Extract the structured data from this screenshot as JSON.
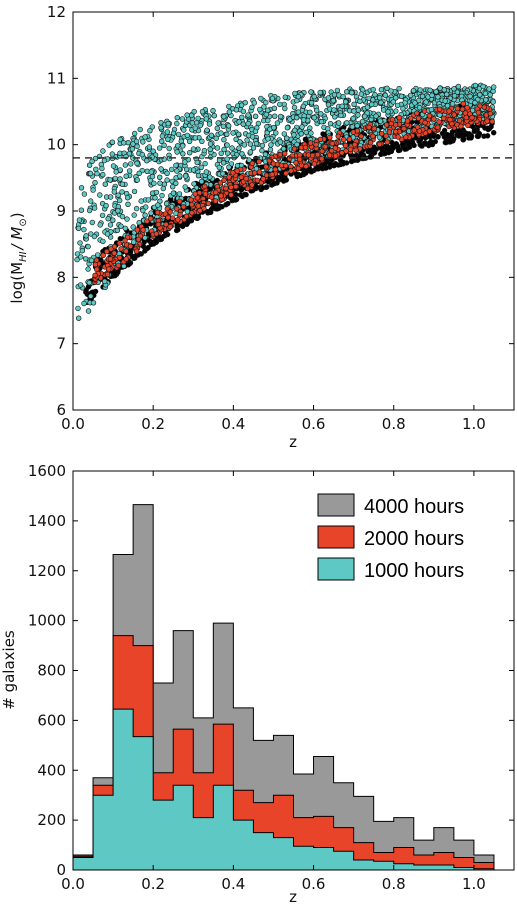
{
  "chart_data": [
    {
      "type": "scatter",
      "title": "",
      "xlabel": "z",
      "ylabel": "log(M_HI / M_⊙)",
      "ylabel_parts": {
        "prefix": "log(M",
        "sub": "HI",
        "mid": "/ M",
        "sub2": "⊙",
        "suffix": ")"
      },
      "xlim": [
        0.0,
        1.1
      ],
      "ylim": [
        6,
        12
      ],
      "x_ticks": [
        0.0,
        0.2,
        0.4,
        0.6,
        0.8,
        1.0
      ],
      "x_tick_labels": [
        "0.0",
        "0.2",
        "0.4",
        "0.6",
        "0.8",
        "1.0"
      ],
      "y_ticks": [
        6,
        7,
        8,
        9,
        10,
        11,
        12
      ],
      "y_tick_labels": [
        "6",
        "7",
        "8",
        "9",
        "10",
        "11",
        "12"
      ],
      "threshold_line": {
        "y": 9.8,
        "style": "dashed"
      },
      "series": [
        {
          "color": "#000000",
          "lower_envelope": [
            [
              0.03,
              7.6
            ],
            [
              0.05,
              7.7
            ],
            [
              0.1,
              8.0
            ],
            [
              0.2,
              8.5
            ],
            [
              0.3,
              8.85
            ],
            [
              0.4,
              9.15
            ],
            [
              0.5,
              9.4
            ],
            [
              0.6,
              9.6
            ],
            [
              0.7,
              9.75
            ],
            [
              0.8,
              9.9
            ],
            [
              0.9,
              10.0
            ],
            [
              1.0,
              10.1
            ],
            [
              1.05,
              10.15
            ]
          ],
          "points_shown": "dense"
        },
        {
          "color": "#e8442a",
          "lower_envelope": [
            [
              0.05,
              7.9
            ],
            [
              0.1,
              8.1
            ],
            [
              0.2,
              8.6
            ],
            [
              0.3,
              8.95
            ],
            [
              0.4,
              9.25
            ],
            [
              0.5,
              9.5
            ],
            [
              0.6,
              9.7
            ],
            [
              0.7,
              9.9
            ],
            [
              0.8,
              10.05
            ],
            [
              0.9,
              10.2
            ],
            [
              1.0,
              10.3
            ],
            [
              1.05,
              10.35
            ]
          ],
          "points_shown": "dense"
        },
        {
          "color": "#5ec8c4",
          "lower_envelope": [
            [
              0.01,
              7.2
            ],
            [
              0.05,
              7.6
            ],
            [
              0.1,
              8.0
            ],
            [
              0.2,
              8.6
            ],
            [
              0.3,
              9.0
            ],
            [
              0.4,
              9.3
            ],
            [
              0.5,
              9.55
            ],
            [
              0.6,
              9.75
            ],
            [
              0.7,
              9.95
            ],
            [
              0.8,
              10.1
            ],
            [
              0.9,
              10.25
            ],
            [
              1.0,
              10.35
            ],
            [
              1.05,
              10.4
            ]
          ],
          "upper_envelope": [
            [
              0.01,
              9.5
            ],
            [
              0.05,
              10.0
            ],
            [
              0.1,
              10.1
            ],
            [
              0.2,
              10.3
            ],
            [
              0.3,
              10.5
            ],
            [
              0.4,
              10.65
            ],
            [
              0.5,
              10.75
            ],
            [
              0.6,
              10.8
            ],
            [
              0.7,
              10.85
            ],
            [
              0.8,
              10.85
            ],
            [
              0.9,
              10.85
            ],
            [
              1.0,
              10.9
            ]
          ],
          "points_shown": "dense"
        }
      ]
    },
    {
      "type": "histogram",
      "title": "",
      "xlabel": "z",
      "ylabel": "# galaxies",
      "xlim": [
        0.0,
        1.1
      ],
      "ylim": [
        0,
        1600
      ],
      "x_ticks": [
        0.0,
        0.2,
        0.4,
        0.6,
        0.8,
        1.0
      ],
      "x_tick_labels": [
        "0.0",
        "0.2",
        "0.4",
        "0.6",
        "0.8",
        "1.0"
      ],
      "y_ticks": [
        0,
        200,
        400,
        600,
        800,
        1000,
        1200,
        1400,
        1600
      ],
      "y_tick_labels": [
        "0",
        "200",
        "400",
        "600",
        "800",
        "1000",
        "1200",
        "1400",
        "1600"
      ],
      "bin_edges": [
        0.0,
        0.05,
        0.1,
        0.15,
        0.2,
        0.25,
        0.3,
        0.35,
        0.4,
        0.45,
        0.5,
        0.55,
        0.6,
        0.65,
        0.7,
        0.75,
        0.8,
        0.85,
        0.9,
        0.95,
        1.0,
        1.05
      ],
      "legend_position": "top-right",
      "series": [
        {
          "name": "4000 hours",
          "color": "#999999",
          "values": [
            60,
            370,
            1265,
            1465,
            750,
            960,
            610,
            990,
            650,
            520,
            540,
            385,
            455,
            350,
            295,
            195,
            210,
            120,
            170,
            120,
            60
          ]
        },
        {
          "name": "2000 hours",
          "color": "#e8442a",
          "values": [
            55,
            340,
            940,
            900,
            390,
            565,
            390,
            585,
            320,
            270,
            300,
            210,
            215,
            170,
            110,
            70,
            90,
            60,
            70,
            50,
            30
          ]
        },
        {
          "name": "1000 hours",
          "color": "#5ec8c4",
          "values": [
            50,
            300,
            645,
            535,
            280,
            340,
            210,
            340,
            200,
            150,
            130,
            95,
            90,
            75,
            40,
            35,
            25,
            20,
            20,
            10,
            5
          ]
        }
      ]
    }
  ]
}
